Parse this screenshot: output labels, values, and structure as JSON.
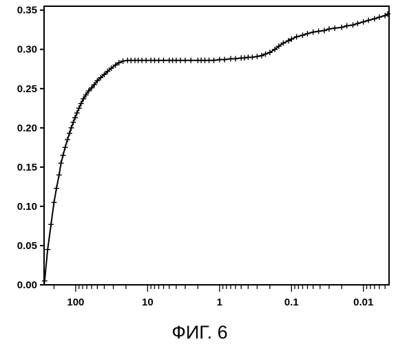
{
  "figure": {
    "caption": "ФИГ. 6"
  },
  "chart_data": {
    "type": "line",
    "title": "",
    "xlabel": "",
    "ylabel": "",
    "x_scale": "log",
    "x_reversed": true,
    "xlim": [
      275,
      0.0044
    ],
    "ylim": [
      0,
      0.355
    ],
    "grid": false,
    "legend": "none",
    "marker": "plus",
    "line_color": "#000000",
    "x_tick_labels": [
      {
        "value": 100,
        "label": "100"
      },
      {
        "value": 10,
        "label": "10"
      },
      {
        "value": 1,
        "label": "1"
      },
      {
        "value": 0.1,
        "label": "0.1"
      },
      {
        "value": 0.01,
        "label": "0.01"
      }
    ],
    "y_ticks": [
      {
        "value": 0.0,
        "label": "0.00"
      },
      {
        "value": 0.05,
        "label": "0.05"
      },
      {
        "value": 0.1,
        "label": "0.10"
      },
      {
        "value": 0.15,
        "label": "0.15"
      },
      {
        "value": 0.2,
        "label": "0.20"
      },
      {
        "value": 0.25,
        "label": "0.25"
      },
      {
        "value": 0.3,
        "label": "0.30"
      },
      {
        "value": 0.35,
        "label": "0.35"
      }
    ],
    "series": [
      {
        "x": [
          270,
          245,
          220,
          200,
          185,
          170,
          160,
          150,
          140,
          130,
          122,
          115,
          108,
          102,
          96,
          90,
          84,
          78,
          72,
          66,
          60,
          55,
          50,
          45,
          40,
          36,
          32,
          28,
          25,
          22,
          19,
          17,
          15,
          13.5,
          12,
          10.5,
          9,
          8,
          7,
          6,
          5,
          4.5,
          4,
          3.5,
          3,
          2.5,
          2,
          1.8,
          1.6,
          1.4,
          1.2,
          1.0,
          0.85,
          0.7,
          0.6,
          0.5,
          0.45,
          0.4,
          0.35,
          0.3,
          0.26,
          0.23,
          0.2,
          0.17,
          0.15,
          0.13,
          0.11,
          0.1,
          0.085,
          0.07,
          0.06,
          0.05,
          0.042,
          0.035,
          0.03,
          0.025,
          0.02,
          0.017,
          0.014,
          0.012,
          0.01,
          0.0085,
          0.007,
          0.006,
          0.005,
          0.0046
        ],
        "y": [
          0.005,
          0.045,
          0.077,
          0.105,
          0.123,
          0.14,
          0.155,
          0.165,
          0.175,
          0.185,
          0.193,
          0.2,
          0.207,
          0.213,
          0.219,
          0.225,
          0.231,
          0.237,
          0.242,
          0.247,
          0.251,
          0.255,
          0.26,
          0.264,
          0.268,
          0.272,
          0.276,
          0.28,
          0.283,
          0.285,
          0.286,
          0.286,
          0.286,
          0.286,
          0.286,
          0.286,
          0.286,
          0.286,
          0.286,
          0.286,
          0.286,
          0.286,
          0.286,
          0.286,
          0.286,
          0.286,
          0.286,
          0.286,
          0.286,
          0.286,
          0.286,
          0.287,
          0.287,
          0.288,
          0.288,
          0.289,
          0.289,
          0.29,
          0.29,
          0.291,
          0.292,
          0.294,
          0.296,
          0.3,
          0.304,
          0.308,
          0.311,
          0.313,
          0.316,
          0.318,
          0.32,
          0.322,
          0.323,
          0.324,
          0.326,
          0.327,
          0.328,
          0.33,
          0.331,
          0.333,
          0.335,
          0.337,
          0.339,
          0.341,
          0.343,
          0.345
        ]
      }
    ]
  }
}
